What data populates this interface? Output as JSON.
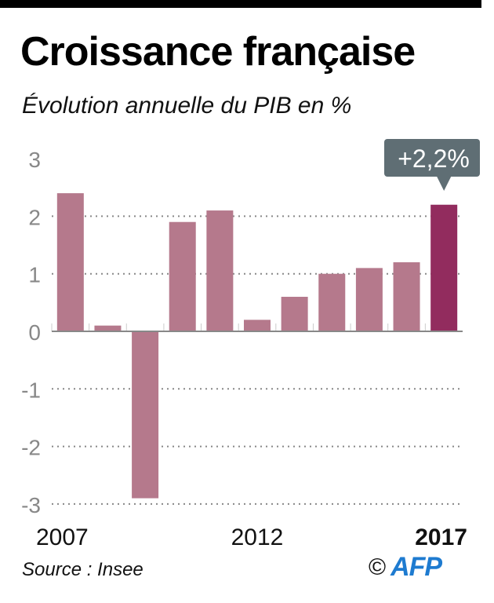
{
  "header": {
    "title": "Croissance française",
    "subtitle": "Évolution annuelle du PIB en %"
  },
  "footer": {
    "source": "Source : Insee",
    "copyright_symbol": "©",
    "agency": "AFP"
  },
  "colors": {
    "bar": "#b5798c",
    "bar_highlight": "#922c5e",
    "callout_bg": "#5f6e74",
    "grid": "#888888",
    "axis_label": "#888888",
    "agency": "#1e7bd0"
  },
  "chart_data": {
    "type": "bar",
    "title": "Croissance française",
    "subtitle": "Évolution annuelle du PIB en %",
    "xlabel": "",
    "ylabel": "%",
    "categories": [
      "2007",
      "2008",
      "2009",
      "2010",
      "2011",
      "2012",
      "2013",
      "2014",
      "2015",
      "2016",
      "2017"
    ],
    "values": [
      2.4,
      0.1,
      -2.9,
      1.9,
      2.1,
      0.2,
      0.6,
      1.0,
      1.1,
      1.2,
      2.2
    ],
    "ylim": [
      -3,
      3
    ],
    "yticks": [
      "3",
      "2",
      "1",
      "0",
      "-1",
      "-2",
      "-3"
    ],
    "ytick_values": [
      3,
      2,
      1,
      0,
      -1,
      -2,
      -3
    ],
    "xtick_labels": [
      {
        "label": "2007",
        "index": 0,
        "bold": false
      },
      {
        "label": "2012",
        "index": 5,
        "bold": false
      },
      {
        "label": "2017",
        "index": 10,
        "bold": true
      }
    ],
    "highlight_index": 10,
    "annotation": {
      "text": "+2,2%",
      "index": 10
    },
    "grid": true
  }
}
